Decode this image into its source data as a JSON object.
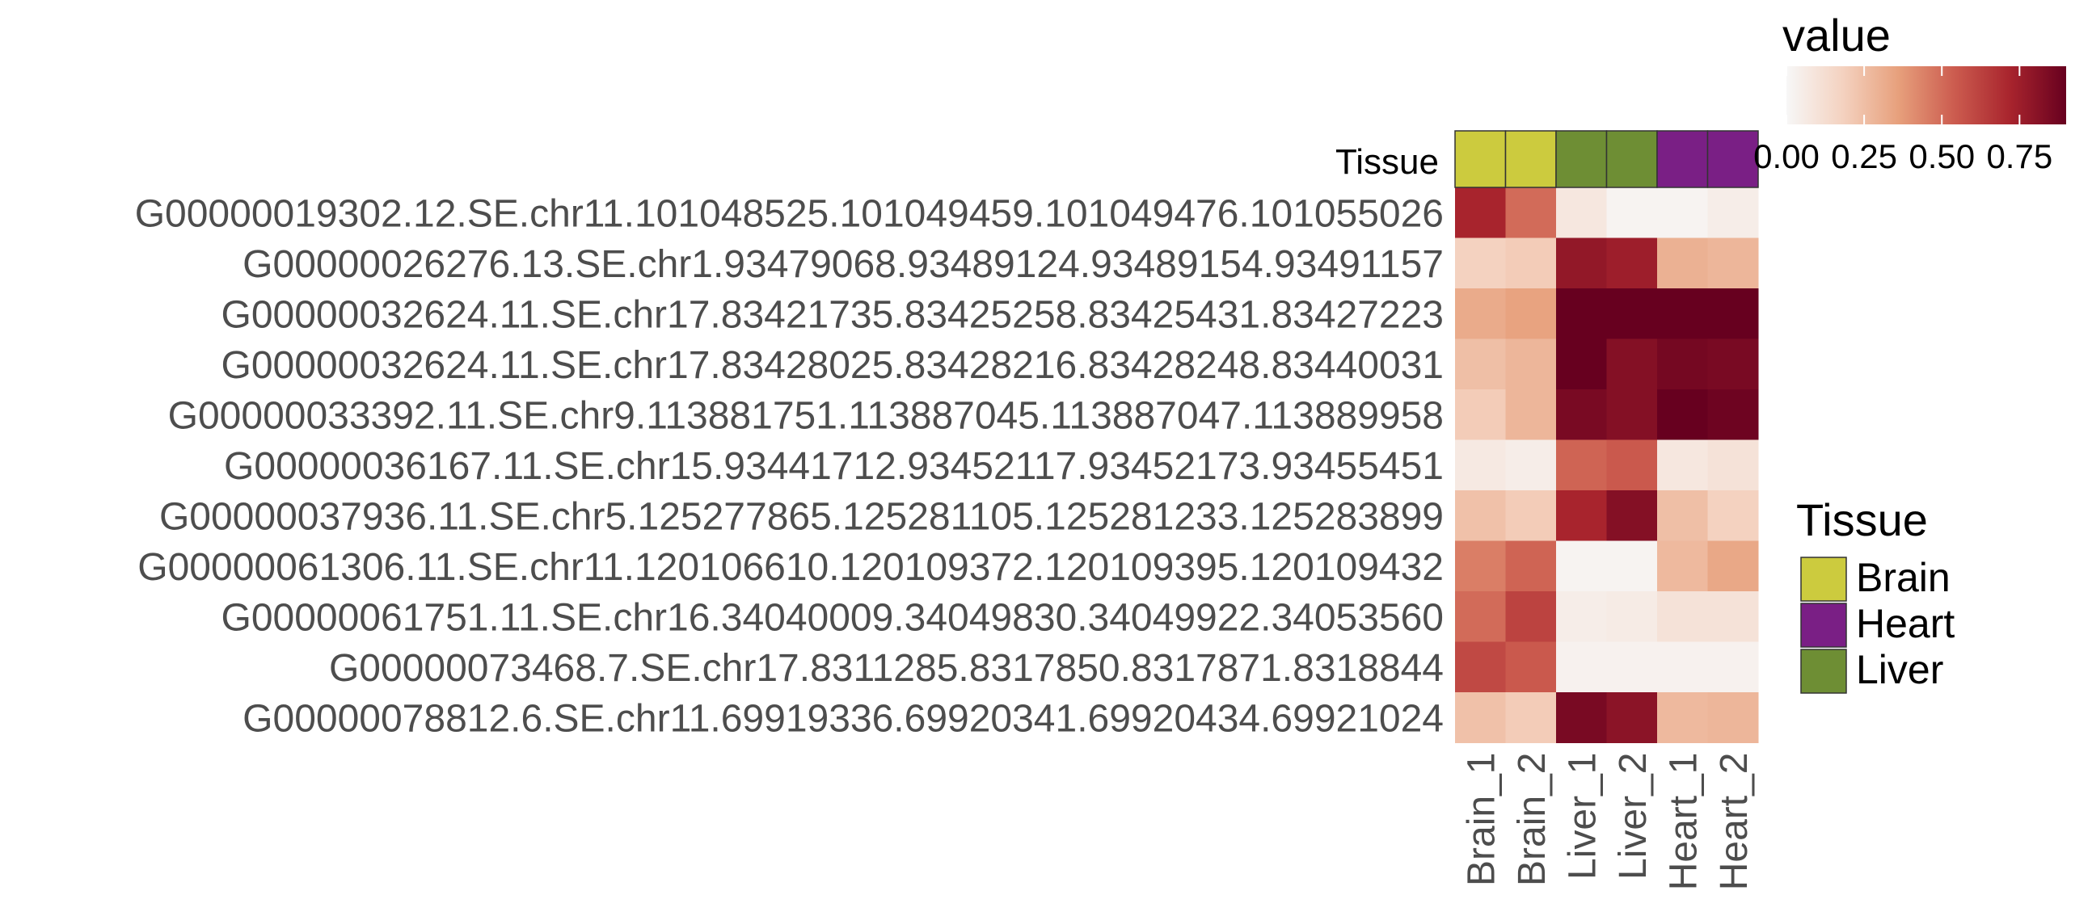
{
  "chart_data": {
    "type": "heatmap",
    "annotation": {
      "label": "Tissue",
      "categories": [
        "Brain",
        "Brain",
        "Liver",
        "Liver",
        "Heart",
        "Heart"
      ]
    },
    "columns": [
      "Brain_1",
      "Brain_2",
      "Liver_1",
      "Liver_2",
      "Heart_1",
      "Heart_2"
    ],
    "rows": [
      "G00000019302.12.SE.chr11.101048525.101049459.101049476.101055026",
      "G00000026276.13.SE.chr1.93479068.93489124.93489154.93491157",
      "G00000032624.11.SE.chr17.83421735.83425258.83425431.83427223",
      "G00000032624.11.SE.chr17.83428025.83428216.83428248.83440031",
      "G00000033392.11.SE.chr9.113881751.113887045.113887047.113889958",
      "G00000036167.11.SE.chr15.93441712.93452117.93452173.93455451",
      "G00000037936.11.SE.chr5.125277865.125281105.125281233.125283899",
      "G00000061306.11.SE.chr11.120106610.120109372.120109395.120109432",
      "G00000061751.11.SE.chr16.34040009.34049830.34049922.34053560",
      "G00000073468.7.SE.chr17.8311285.8317850.8317871.8318844",
      "G00000078812.6.SE.chr11.69919336.69920341.69920434.69921024"
    ],
    "values": [
      [
        0.72,
        0.5,
        0.08,
        0.02,
        0.02,
        0.05
      ],
      [
        0.18,
        0.2,
        0.78,
        0.75,
        0.3,
        0.28
      ],
      [
        0.32,
        0.35,
        0.9,
        0.95,
        0.9,
        0.95
      ],
      [
        0.25,
        0.28,
        0.9,
        0.82,
        0.86,
        0.85
      ],
      [
        0.2,
        0.28,
        0.85,
        0.82,
        0.92,
        0.88
      ],
      [
        0.07,
        0.05,
        0.52,
        0.55,
        0.08,
        0.1
      ],
      [
        0.24,
        0.2,
        0.72,
        0.82,
        0.25,
        0.18
      ],
      [
        0.45,
        0.52,
        0.02,
        0.02,
        0.27,
        0.33
      ],
      [
        0.5,
        0.62,
        0.05,
        0.06,
        0.1,
        0.1
      ],
      [
        0.6,
        0.55,
        0.03,
        0.03,
        0.03,
        0.03
      ],
      [
        0.24,
        0.2,
        0.85,
        0.8,
        0.27,
        0.28
      ]
    ],
    "color_scale": {
      "title": "value",
      "range": [
        0,
        0.9
      ],
      "ticks": [
        0.0,
        0.25,
        0.5,
        0.75
      ],
      "tick_labels": [
        "0.00",
        "0.25",
        "0.50",
        "0.75"
      ],
      "colors": [
        "#f7f7f7",
        "#f4d2c0",
        "#e7a07c",
        "#cc5c4f",
        "#a8242d",
        "#67001f"
      ]
    },
    "legend": {
      "title": "Tissue",
      "items": [
        {
          "label": "Brain",
          "color": "#cccb3e"
        },
        {
          "label": "Heart",
          "color": "#7a1f85"
        },
        {
          "label": "Liver",
          "color": "#6e8e34"
        }
      ]
    }
  }
}
